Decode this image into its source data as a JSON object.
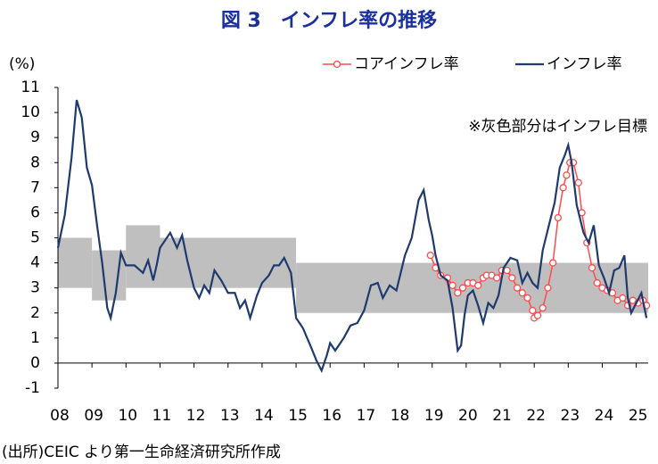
{
  "chart_data": {
    "type": "line",
    "title": "図 3　インフレ率の推移",
    "y_unit_label": "(%)",
    "annotation": "※灰色部分はインフレ目標",
    "source": "(出所)CEIC より第一生命経済研究所作成",
    "xlim": [
      2008,
      2025.35
    ],
    "xticks": [
      {
        "value": 2008,
        "label": "08"
      },
      {
        "value": 2009,
        "label": "09"
      },
      {
        "value": 2010,
        "label": "10"
      },
      {
        "value": 2011,
        "label": "11"
      },
      {
        "value": 2012,
        "label": "12"
      },
      {
        "value": 2013,
        "label": "13"
      },
      {
        "value": 2014,
        "label": "14"
      },
      {
        "value": 2015,
        "label": "15"
      },
      {
        "value": 2016,
        "label": "16"
      },
      {
        "value": 2017,
        "label": "17"
      },
      {
        "value": 2018,
        "label": "18"
      },
      {
        "value": 2019,
        "label": "19"
      },
      {
        "value": 2020,
        "label": "20"
      },
      {
        "value": 2021,
        "label": "21"
      },
      {
        "value": 2022,
        "label": "22"
      },
      {
        "value": 2023,
        "label": "23"
      },
      {
        "value": 2024,
        "label": "24"
      },
      {
        "value": 2025,
        "label": "25"
      }
    ],
    "ylim": [
      -1,
      11
    ],
    "yticks": [
      -1,
      0,
      1,
      2,
      3,
      4,
      5,
      6,
      7,
      8,
      9,
      10,
      11
    ],
    "target_band": {
      "color": "#bfbfbf",
      "segments": [
        {
          "from": 2008,
          "to": 2009,
          "lower": 3,
          "upper": 5
        },
        {
          "from": 2009,
          "to": 2010,
          "lower": 2.5,
          "upper": 4.5
        },
        {
          "from": 2010,
          "to": 2011,
          "lower": 3,
          "upper": 5.5
        },
        {
          "from": 2011,
          "to": 2015,
          "lower": 3,
          "upper": 5
        },
        {
          "from": 2015,
          "to": 2025.35,
          "lower": 2,
          "upper": 4
        }
      ]
    },
    "series": [
      {
        "name": "コアインフレ率",
        "color": "#ff4b4b",
        "markers": true,
        "x": [
          2018.95,
          2019.1,
          2019.25,
          2019.45,
          2019.6,
          2019.75,
          2019.9,
          2020.05,
          2020.2,
          2020.35,
          2020.5,
          2020.6,
          2020.75,
          2020.9,
          2021.05,
          2021.2,
          2021.35,
          2021.5,
          2021.65,
          2021.8,
          2021.95,
          2022.0,
          2022.1,
          2022.25,
          2022.4,
          2022.55,
          2022.7,
          2022.85,
          2022.95,
          2023.05,
          2023.15,
          2023.3,
          2023.4,
          2023.55,
          2023.7,
          2023.85,
          2024.0,
          2024.15,
          2024.3,
          2024.45,
          2024.6,
          2024.75,
          2024.9,
          2025.05,
          2025.2,
          2025.3
        ],
        "values": [
          4.3,
          3.8,
          3.5,
          3.4,
          3.1,
          2.8,
          3.0,
          3.2,
          3.2,
          3.1,
          3.4,
          3.5,
          3.5,
          3.4,
          3.7,
          3.7,
          3.4,
          3.0,
          2.8,
          2.6,
          2.1,
          1.8,
          1.9,
          2.2,
          3.0,
          4.0,
          5.8,
          7.0,
          7.5,
          8.0,
          8.0,
          7.2,
          6.0,
          4.8,
          3.8,
          3.2,
          3.0,
          2.9,
          2.8,
          2.5,
          2.6,
          2.3,
          2.5,
          2.4,
          2.5,
          2.3
        ]
      },
      {
        "name": "インフレ率",
        "color": "#1f3a6e",
        "markers": false,
        "x": [
          2008.0,
          2008.2,
          2008.4,
          2008.55,
          2008.7,
          2008.85,
          2009.0,
          2009.15,
          2009.3,
          2009.45,
          2009.55,
          2009.7,
          2009.85,
          2010.0,
          2010.25,
          2010.5,
          2010.65,
          2010.8,
          2010.9,
          2011.0,
          2011.15,
          2011.3,
          2011.5,
          2011.65,
          2011.8,
          2012.0,
          2012.15,
          2012.3,
          2012.45,
          2012.6,
          2012.8,
          2013.0,
          2013.2,
          2013.35,
          2013.5,
          2013.65,
          2013.85,
          2014.0,
          2014.2,
          2014.35,
          2014.5,
          2014.65,
          2014.85,
          2015.0,
          2015.2,
          2015.45,
          2015.6,
          2015.75,
          2015.9,
          2016.0,
          2016.15,
          2016.4,
          2016.6,
          2016.8,
          2017.0,
          2017.2,
          2017.4,
          2017.55,
          2017.75,
          2017.95,
          2018.2,
          2018.4,
          2018.6,
          2018.75,
          2018.9,
          2019.0,
          2019.1,
          2019.25,
          2019.45,
          2019.6,
          2019.75,
          2019.85,
          2019.95,
          2020.05,
          2020.2,
          2020.35,
          2020.5,
          2020.65,
          2020.8,
          2020.95,
          2021.1,
          2021.3,
          2021.5,
          2021.65,
          2021.8,
          2021.95,
          2022.1,
          2022.25,
          2022.45,
          2022.6,
          2022.75,
          2022.9,
          2023.0,
          2023.1,
          2023.25,
          2023.45,
          2023.6,
          2023.75,
          2023.9,
          2024.05,
          2024.2,
          2024.35,
          2024.5,
          2024.65,
          2024.75,
          2024.85,
          2025.0,
          2025.15,
          2025.3
        ],
        "values": [
          4.6,
          5.9,
          8.2,
          10.5,
          9.8,
          7.8,
          7.1,
          5.5,
          4.0,
          2.2,
          1.8,
          2.8,
          4.4,
          3.9,
          3.9,
          3.6,
          4.1,
          3.3,
          3.9,
          4.6,
          4.9,
          5.2,
          4.6,
          5.1,
          4.1,
          3.0,
          2.6,
          3.1,
          2.8,
          3.7,
          3.3,
          2.8,
          2.8,
          2.2,
          2.5,
          1.8,
          2.7,
          3.2,
          3.5,
          3.9,
          3.9,
          4.2,
          3.6,
          1.8,
          1.4,
          0.6,
          0.1,
          -0.3,
          0.3,
          0.8,
          0.5,
          1.0,
          1.5,
          1.6,
          2.1,
          3.1,
          3.2,
          2.6,
          3.1,
          2.9,
          4.3,
          5.0,
          6.5,
          6.9,
          5.7,
          5.1,
          4.3,
          3.5,
          3.3,
          2.2,
          0.5,
          0.7,
          1.9,
          2.7,
          2.9,
          2.3,
          1.6,
          2.4,
          2.2,
          2.7,
          3.8,
          4.2,
          4.1,
          3.2,
          3.6,
          3.2,
          3.0,
          4.5,
          5.6,
          6.4,
          7.8,
          8.3,
          8.7,
          8.0,
          6.3,
          5.2,
          4.8,
          5.5,
          3.9,
          3.4,
          2.8,
          3.7,
          3.8,
          4.3,
          2.6,
          2.0,
          2.4,
          2.8,
          1.8
        ]
      }
    ]
  }
}
